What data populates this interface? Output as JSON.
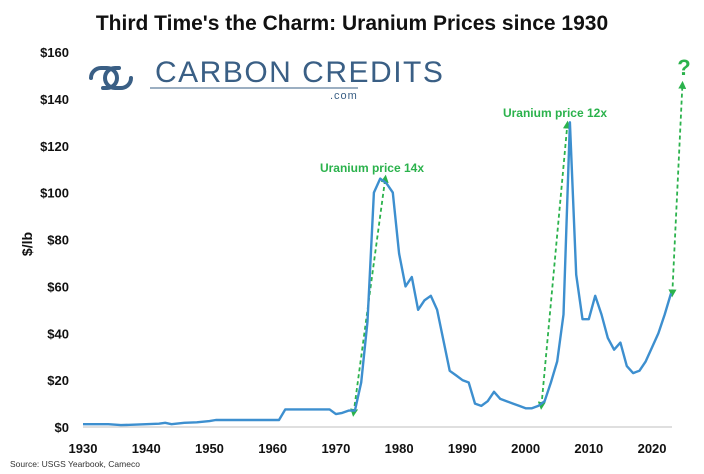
{
  "title": "Third Time's the Charm: Uranium Prices since 1930",
  "logo": {
    "name": "CARBON CREDITS",
    "suffix": ".com"
  },
  "source": "Source: USGS Yearbook, Cameco",
  "annotations": {
    "peak1": "Uranium price 14x",
    "peak2": "Uranium price 12x",
    "future": "?"
  },
  "colors": {
    "line": "#3d8fcf",
    "arrow": "#2bb24c",
    "logo": "#3a5f85"
  },
  "chart_data": {
    "type": "line",
    "title": "Third Time's the Charm: Uranium Prices since 1930",
    "xlabel": "",
    "ylabel": "$/lb",
    "xlim": [
      1930,
      2026
    ],
    "ylim": [
      0,
      160
    ],
    "x_ticks": [
      1930,
      1940,
      1950,
      1960,
      1970,
      1980,
      1990,
      2000,
      2010,
      2020
    ],
    "y_ticks": [
      "$0",
      "$20",
      "$40",
      "$60",
      "$80",
      "$100",
      "$120",
      "$140",
      "$160"
    ],
    "grid": false,
    "series": [
      {
        "x": [
          1930,
          1934,
          1936,
          1938,
          1940,
          1942,
          1943,
          1944,
          1946,
          1948,
          1950,
          1951,
          1952,
          1955,
          1958,
          1961,
          1962,
          1964,
          1966,
          1968,
          1969,
          1970,
          1971,
          1972,
          1973,
          1974,
          1975,
          1976,
          1977,
          1978,
          1979,
          1980,
          1981,
          1982,
          1983,
          1984,
          1985,
          1986,
          1987,
          1988,
          1989,
          1990,
          1991,
          1992,
          1993,
          1994,
          1995,
          1996,
          1997,
          1998,
          1999,
          2000,
          2001,
          2002,
          2003,
          2004,
          2005,
          2006,
          2007,
          2008,
          2009,
          2010,
          2011,
          2012,
          2013,
          2014,
          2015,
          2016,
          2017,
          2018,
          2019,
          2020,
          2021,
          2022,
          2023
        ],
        "values": [
          1.2,
          1.2,
          0.8,
          1.0,
          1.2,
          1.4,
          1.8,
          1.2,
          1.8,
          2.0,
          2.5,
          3.0,
          3.0,
          3.0,
          3.0,
          3.0,
          7.5,
          7.5,
          7.5,
          7.5,
          7.5,
          5.5,
          6.0,
          7.0,
          7.0,
          19,
          45,
          100,
          106,
          104,
          100,
          74,
          60,
          64,
          50,
          54,
          56,
          50,
          37,
          24,
          22,
          20,
          19,
          10,
          9,
          11,
          15,
          12,
          11,
          10,
          9,
          8,
          8,
          9,
          11,
          19,
          28,
          48,
          130,
          65,
          46,
          46,
          56,
          48,
          38,
          33,
          36,
          26,
          23,
          24,
          28,
          34,
          40,
          48,
          57
        ]
      }
    ],
    "annotations": [
      "Uranium price 14x",
      "Uranium price 12x",
      "?"
    ]
  }
}
